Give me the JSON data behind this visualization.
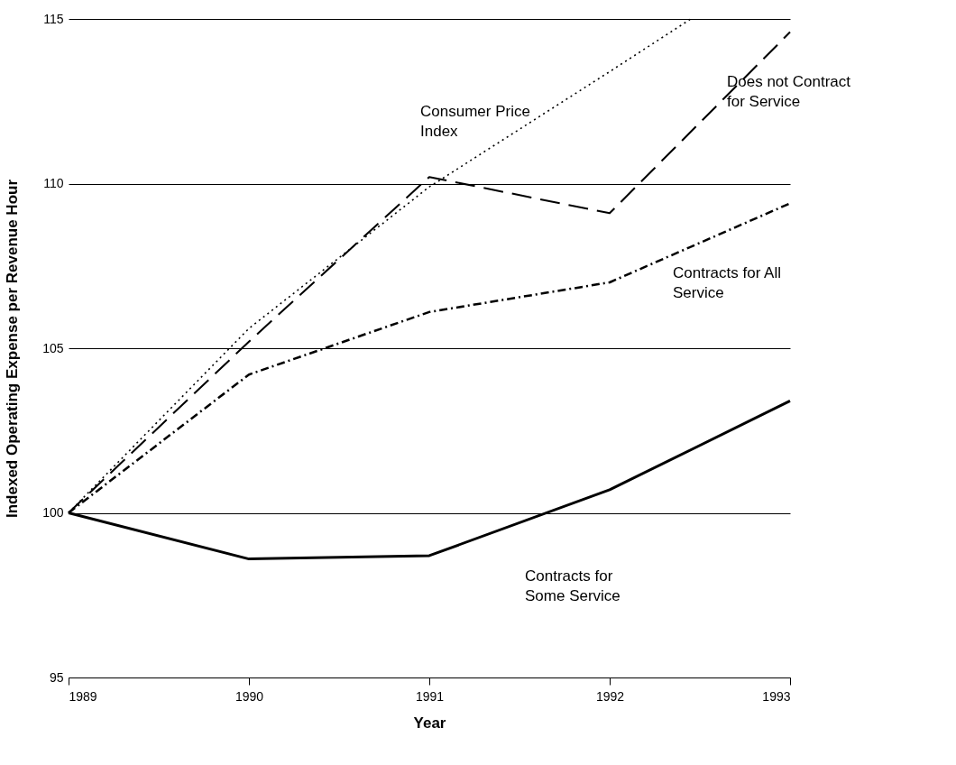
{
  "chart_data": {
    "type": "line",
    "xlabel": "Year",
    "ylabel": "Indexed Operating Expense per Revenue Hour",
    "xlim": [
      1989,
      1993
    ],
    "xticks": [
      1989,
      1990,
      1991,
      1992,
      1993
    ],
    "ylim": [
      95,
      115
    ],
    "yticks": [
      95,
      100,
      105,
      110,
      115
    ],
    "grid": "y",
    "legend": false,
    "x": [
      1989,
      1990,
      1991,
      1992,
      1993
    ],
    "series": [
      {
        "name": "Consumer Price Index",
        "color": "#000000",
        "line_style": "dotted",
        "x": [
          1989,
          1990,
          1991,
          1992,
          1992.45
        ],
        "values": [
          100,
          105.6,
          109.9,
          113.4,
          115
        ]
      },
      {
        "name": "Does not Contract for Service",
        "color": "#000000",
        "line_style": "dashed",
        "values": [
          100,
          105.2,
          110.2,
          109.1,
          114.6
        ]
      },
      {
        "name": "Contracts for All Service",
        "color": "#000000",
        "line_style": "dashdot",
        "values": [
          100,
          104.2,
          106.1,
          107.0,
          109.4
        ]
      },
      {
        "name": "Contracts for Some Service",
        "color": "#000000",
        "line_style": "solid",
        "values": [
          100,
          98.6,
          98.7,
          100.7,
          103.4
        ]
      }
    ]
  }
}
